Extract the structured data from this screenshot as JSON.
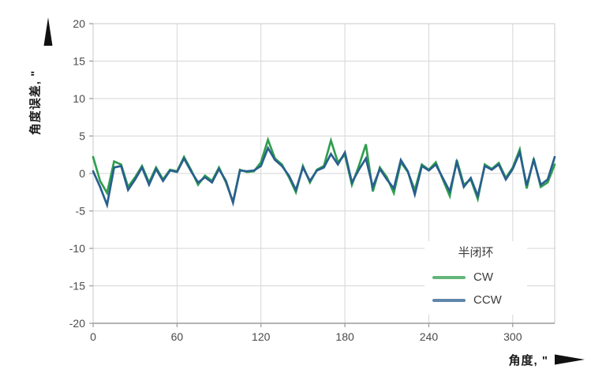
{
  "chart_data": {
    "type": "line",
    "title": "",
    "xlabel": "角度, \"",
    "ylabel": "角度误差, \"",
    "xlim": [
      0,
      330
    ],
    "ylim": [
      -20,
      20
    ],
    "grid": true,
    "x_ticks": [
      0,
      60,
      120,
      180,
      240,
      300
    ],
    "y_ticks": [
      20,
      15,
      10,
      5,
      0,
      -5,
      -10,
      -15,
      -20
    ],
    "legend_title": "半闭环",
    "legend_position": "lower-right",
    "x": [
      0,
      5,
      10,
      15,
      20,
      25,
      30,
      35,
      40,
      45,
      50,
      55,
      60,
      65,
      70,
      75,
      80,
      85,
      90,
      95,
      100,
      105,
      110,
      115,
      120,
      125,
      130,
      135,
      140,
      145,
      150,
      155,
      160,
      165,
      170,
      175,
      180,
      185,
      190,
      195,
      200,
      205,
      210,
      215,
      220,
      225,
      230,
      235,
      240,
      245,
      250,
      255,
      260,
      265,
      270,
      275,
      280,
      285,
      290,
      295,
      300,
      305,
      310,
      315,
      320,
      325,
      330
    ],
    "series": [
      {
        "name": "CW",
        "color": "#2f9e4e",
        "values": [
          2.2,
          -1.0,
          -2.6,
          1.6,
          1.2,
          -1.8,
          -0.5,
          1.0,
          -1.2,
          0.8,
          -0.8,
          0.5,
          0.3,
          2.2,
          0.5,
          -1.5,
          -0.3,
          -1.0,
          0.8,
          -1.2,
          -3.8,
          0.5,
          0.2,
          0.3,
          1.5,
          4.5,
          2.0,
          1.2,
          -0.5,
          -2.5,
          1.0,
          -1.2,
          0.5,
          1.0,
          4.4,
          1.5,
          2.5,
          -1.5,
          1.0,
          3.9,
          -2.4,
          0.8,
          -0.5,
          -2.6,
          1.5,
          0.2,
          -2.2,
          1.2,
          0.5,
          1.5,
          -0.8,
          -3.0,
          1.8,
          -1.5,
          -0.8,
          -3.4,
          1.2,
          0.6,
          1.4,
          -0.6,
          0.8,
          3.2,
          -2.0,
          2.0,
          -1.8,
          -1.2,
          1.2
        ]
      },
      {
        "name": "CCW",
        "color": "#295f8e",
        "values": [
          0.3,
          -1.8,
          -4.2,
          0.8,
          1.0,
          -2.2,
          -0.8,
          0.8,
          -1.5,
          0.6,
          -1.0,
          0.4,
          0.2,
          2.0,
          0.3,
          -1.2,
          -0.5,
          -1.2,
          0.6,
          -1.0,
          -3.9,
          0.4,
          0.3,
          0.4,
          1.0,
          3.4,
          1.8,
          1.0,
          -0.3,
          -2.2,
          0.8,
          -1.0,
          0.4,
          0.8,
          2.6,
          1.2,
          2.8,
          -1.2,
          0.5,
          2.0,
          -1.8,
          0.6,
          -0.8,
          -2.0,
          1.8,
          0.3,
          -2.8,
          1.0,
          0.4,
          1.2,
          -0.6,
          -2.4,
          1.5,
          -1.8,
          -0.6,
          -3.0,
          1.0,
          0.5,
          1.2,
          -0.8,
          0.6,
          2.8,
          -1.6,
          1.8,
          -1.5,
          -0.8,
          2.2
        ]
      }
    ],
    "colors": {
      "grid": "#d6d6d6",
      "border": "#c9c9c9",
      "axis": "#9a9a9a",
      "tick_text": "#4a4a4a",
      "arrow": "#111111"
    }
  }
}
